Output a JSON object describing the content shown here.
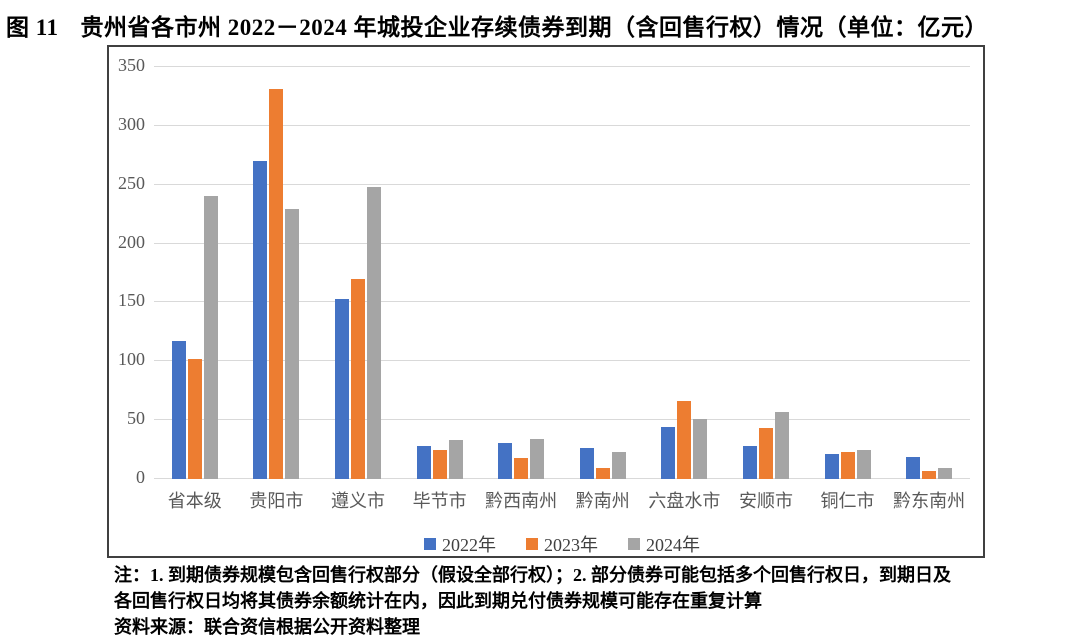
{
  "header": {
    "figure_label": "图 11",
    "title": "贵州省各市州 2022－2024 年城投企业存续债券到期（含回售行权）情况（单位：亿元）"
  },
  "chart_data": {
    "type": "bar",
    "title": "图 11 贵州省各市州 2022－2024 年城投企业存续债券到期（含回售行权）情况（单位：亿元）",
    "categories": [
      "省本级",
      "贵阳市",
      "遵义市",
      "毕节市",
      "黔西南州",
      "黔南州",
      "六盘水市",
      "安顺市",
      "铜仁市",
      "黔东南州"
    ],
    "series": [
      {
        "name": "2022年",
        "color": "#4472C4",
        "values": [
          117,
          270,
          153,
          28,
          31,
          26,
          44,
          28,
          21,
          19
        ]
      },
      {
        "name": "2023年",
        "color": "#ED7D31",
        "values": [
          102,
          331,
          170,
          25,
          18,
          9,
          66,
          43,
          23,
          7
        ]
      },
      {
        "name": "2024年",
        "color": "#A5A5A5",
        "values": [
          240,
          229,
          248,
          33,
          34,
          23,
          51,
          57,
          25,
          9
        ]
      }
    ],
    "ylabel": "",
    "xlabel": "",
    "ylim": [
      0,
      350
    ],
    "ytick_interval": 50,
    "yticks": [
      0,
      50,
      100,
      150,
      200,
      250,
      300,
      350
    ],
    "grid": true,
    "legend_position": "bottom"
  },
  "colors": {
    "gridline": "#d9d9d9",
    "axis_text": "#595959",
    "frame_border": "#404040"
  },
  "notes": {
    "line1": "注：1. 到期债券规模包含回售行权部分（假设全部行权）；2. 部分债券可能包括多个回售行权日，到期日及",
    "line2": "各回售行权日均将其债券余额统计在内，因此到期兑付债券规模可能存在重复计算",
    "source": "资料来源：联合资信根据公开资料整理"
  }
}
